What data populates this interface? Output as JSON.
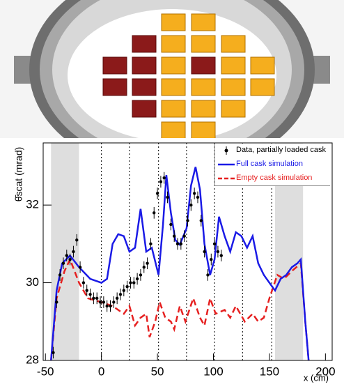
{
  "chart_data": {
    "type": "line",
    "xlabel": "x (cm)",
    "ylabel": "θ̄scat (mrad)",
    "xlim": [
      -52,
      206
    ],
    "ylim": [
      28,
      33.6
    ],
    "xticks": [
      -50,
      0,
      50,
      100,
      150,
      200
    ],
    "yticks": [
      28,
      30,
      32
    ],
    "shaded_regions": [
      [
        -45,
        -20
      ],
      [
        155,
        180
      ]
    ],
    "dividers": [
      0,
      25,
      51,
      76,
      101,
      126,
      152
    ],
    "legend": "upper right",
    "series": [
      {
        "name": "Data, partially loaded cask",
        "color": "#000000",
        "style": "errorbar",
        "error": 0.15,
        "x": [
          -43,
          -40,
          -37,
          -34,
          -31,
          -28,
          -25,
          -22,
          -19,
          -16,
          -13,
          -10,
          -7,
          -4,
          -1,
          2,
          5,
          8,
          11,
          14,
          17,
          20,
          23,
          26,
          29,
          32,
          35,
          38,
          41,
          44,
          47,
          50,
          53,
          56,
          59,
          62,
          65,
          68,
          71,
          74,
          77,
          80,
          83,
          86,
          89,
          92,
          95,
          98,
          101,
          104,
          107
        ],
        "values": [
          28.2,
          29.5,
          30.2,
          30.5,
          30.7,
          30.6,
          30.8,
          31.1,
          30.4,
          30.0,
          29.8,
          29.7,
          29.6,
          29.6,
          29.5,
          29.5,
          29.4,
          29.4,
          29.5,
          29.6,
          29.7,
          29.8,
          29.9,
          30.0,
          30.0,
          30.1,
          30.2,
          30.4,
          30.5,
          31.0,
          31.8,
          32.3,
          32.6,
          32.7,
          32.2,
          31.5,
          31.2,
          31.0,
          31.0,
          31.2,
          31.6,
          32.0,
          32.3,
          32.2,
          31.6,
          30.8,
          30.2,
          30.6,
          31.0,
          30.8,
          30.7
        ]
      },
      {
        "name": "Full cask simulation",
        "color": "#1a1ae6",
        "style": "solid",
        "x": [
          -45,
          -40,
          -35,
          -28,
          -20,
          -10,
          0,
          5,
          10,
          15,
          20,
          25,
          30,
          35,
          40,
          45,
          51,
          55,
          58,
          62,
          66,
          70,
          76,
          80,
          84,
          88,
          92,
          97,
          101,
          105,
          110,
          115,
          120,
          125,
          130,
          135,
          140,
          145,
          150,
          155,
          160,
          165,
          170,
          175,
          178,
          182,
          185
        ],
        "values": [
          28.0,
          29.8,
          30.5,
          30.7,
          30.4,
          30.1,
          30.0,
          30.1,
          31.0,
          31.25,
          31.2,
          30.8,
          30.9,
          31.9,
          30.8,
          30.9,
          30.2,
          31.5,
          32.77,
          31.8,
          31.1,
          30.98,
          31.4,
          32.5,
          32.98,
          32.4,
          31.0,
          30.2,
          30.6,
          31.7,
          31.2,
          30.8,
          31.3,
          31.2,
          30.9,
          31.2,
          30.5,
          30.2,
          30.0,
          29.8,
          30.1,
          30.2,
          30.4,
          30.5,
          30.6,
          29.0,
          28.0
        ]
      },
      {
        "name": "Empty cask simulation",
        "color": "#e62020",
        "style": "dashed",
        "x": [
          -45,
          -40,
          -33,
          -28,
          -20,
          -12,
          0,
          10,
          20,
          25,
          30,
          35,
          40,
          43,
          48,
          52,
          57,
          62,
          65,
          70,
          75,
          82,
          88,
          92,
          97,
          102,
          110,
          115,
          120,
          128,
          135,
          140,
          145,
          150,
          157,
          163,
          170,
          178,
          182,
          185
        ],
        "values": [
          28.0,
          29.6,
          30.3,
          30.6,
          30.0,
          29.6,
          29.5,
          29.4,
          29.2,
          29.4,
          28.9,
          29.1,
          29.2,
          28.6,
          29.0,
          29.5,
          29.1,
          29.0,
          28.8,
          29.4,
          29.0,
          29.6,
          29.1,
          28.9,
          29.6,
          29.2,
          29.3,
          29.1,
          29.4,
          29.0,
          29.2,
          29.0,
          29.1,
          29.6,
          30.2,
          30.1,
          30.3,
          30.5,
          29.0,
          28.0
        ]
      }
    ]
  }
}
